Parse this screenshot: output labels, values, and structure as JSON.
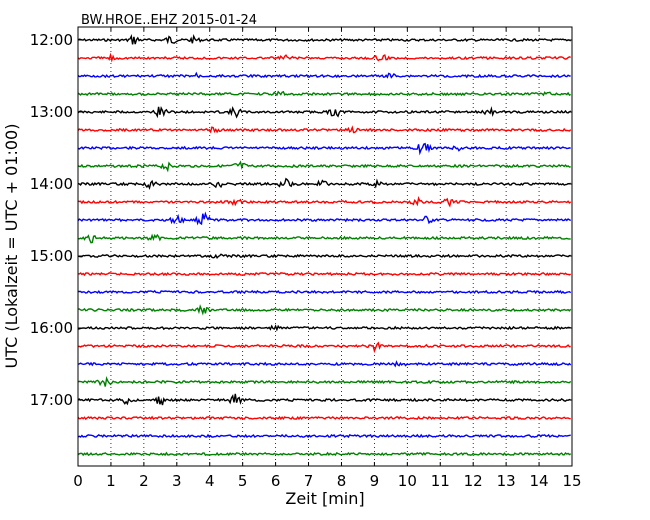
{
  "chart_data": {
    "type": "line",
    "title": "BW.HROE..EHZ 2015-01-24",
    "xlabel": "Zeit  [min]",
    "ylabel": "UTC (Lokalzeit = UTC + 01:00)",
    "xlim": [
      0,
      15
    ],
    "x_ticks": [
      "0",
      "1",
      "2",
      "3",
      "4",
      "5",
      "6",
      "7",
      "8",
      "9",
      "10",
      "11",
      "12",
      "13",
      "14",
      "15"
    ],
    "y_ticks": [
      "12:00",
      "13:00",
      "14:00",
      "15:00",
      "16:00",
      "17:00"
    ],
    "grid": "vertical dotted",
    "traces_per_hour": 4,
    "trace_colors": [
      "#000000",
      "#ff0000",
      "#0000ff",
      "#008000"
    ],
    "traces": [
      {
        "start": "12:00",
        "bursts": [
          [
            1.7,
            0.7
          ],
          [
            2.8,
            0.6
          ],
          [
            3.5,
            0.4
          ]
        ]
      },
      {
        "start": "12:15",
        "bursts": [
          [
            1.0,
            0.4
          ],
          [
            6.3,
            0.4
          ],
          [
            9.2,
            0.5
          ]
        ]
      },
      {
        "start": "12:30",
        "bursts": [
          [
            3.6,
            0.3
          ],
          [
            9.5,
            0.3
          ]
        ]
      },
      {
        "start": "12:45",
        "bursts": [
          [
            6.1,
            0.4
          ],
          [
            14.2,
            0.3
          ]
        ]
      },
      {
        "start": "13:00",
        "bursts": [
          [
            2.5,
            0.8
          ],
          [
            4.8,
            0.7
          ],
          [
            7.8,
            0.8
          ],
          [
            12.5,
            0.4
          ]
        ]
      },
      {
        "start": "13:15",
        "bursts": [
          [
            4.1,
            0.4
          ],
          [
            8.3,
            0.3
          ]
        ]
      },
      {
        "start": "13:30",
        "bursts": [
          [
            10.5,
            1.0
          ],
          [
            11.6,
            0.5
          ]
        ]
      },
      {
        "start": "13:45",
        "bursts": [
          [
            2.7,
            0.5
          ],
          [
            4.9,
            0.6
          ]
        ]
      },
      {
        "start": "14:00",
        "bursts": [
          [
            2.2,
            0.5
          ],
          [
            4.2,
            0.6
          ],
          [
            6.3,
            0.8
          ],
          [
            7.4,
            0.4
          ],
          [
            9.1,
            0.4
          ]
        ]
      },
      {
        "start": "14:15",
        "bursts": [
          [
            4.8,
            0.4
          ],
          [
            10.3,
            0.5
          ],
          [
            11.3,
            0.6
          ]
        ]
      },
      {
        "start": "14:30",
        "bursts": [
          [
            3.0,
            0.6
          ],
          [
            3.8,
            1.0
          ],
          [
            10.6,
            0.5
          ]
        ]
      },
      {
        "start": "14:45",
        "bursts": [
          [
            0.4,
            0.6
          ],
          [
            2.3,
            0.5
          ]
        ]
      },
      {
        "start": "15:00",
        "bursts": [
          [
            4.2,
            0.3
          ]
        ]
      },
      {
        "start": "15:15",
        "bursts": []
      },
      {
        "start": "15:30",
        "bursts": []
      },
      {
        "start": "15:45",
        "bursts": [
          [
            3.8,
            1.0
          ]
        ]
      },
      {
        "start": "16:00",
        "bursts": [
          [
            6.0,
            0.3
          ]
        ]
      },
      {
        "start": "16:15",
        "bursts": [
          [
            9.0,
            0.6
          ]
        ]
      },
      {
        "start": "16:30",
        "bursts": [
          [
            9.8,
            0.4
          ]
        ]
      },
      {
        "start": "16:45",
        "bursts": [
          [
            0.8,
            0.7
          ]
        ]
      },
      {
        "start": "17:00",
        "bursts": [
          [
            1.5,
            0.8
          ],
          [
            2.5,
            0.8
          ],
          [
            4.8,
            0.9
          ]
        ]
      },
      {
        "start": "17:15",
        "bursts": []
      },
      {
        "start": "17:30",
        "bursts": []
      },
      {
        "start": "17:45",
        "bursts": []
      }
    ]
  }
}
